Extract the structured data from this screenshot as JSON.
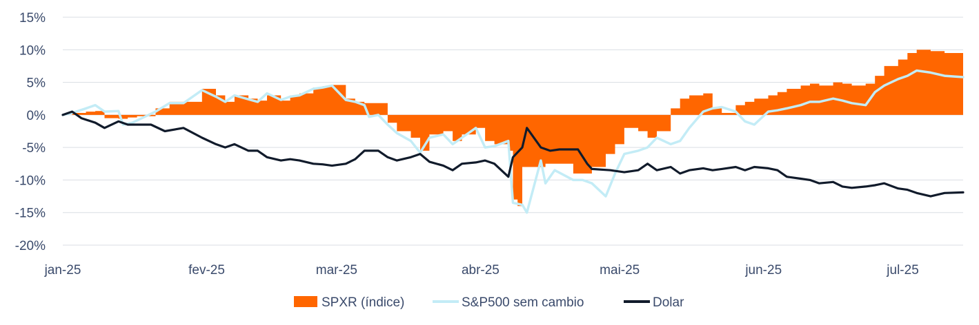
{
  "chart_data": {
    "type": "area",
    "title": "",
    "xlabel": "",
    "ylabel": "",
    "ylim": [
      -20,
      15
    ],
    "y_ticks": [
      15,
      10,
      5,
      0,
      -5,
      -10,
      -15,
      -20
    ],
    "y_tick_labels": [
      "15%",
      "10%",
      "5%",
      "0%",
      "-5%",
      "-10%",
      "-15%",
      "-20%"
    ],
    "x_ticks": [
      {
        "date": "2025-01-01",
        "label": "jan-25"
      },
      {
        "date": "2025-02-01",
        "label": "fev-25"
      },
      {
        "date": "2025-03-01",
        "label": "mar-25"
      },
      {
        "date": "2025-04-01",
        "label": "abr-25"
      },
      {
        "date": "2025-05-01",
        "label": "mai-25"
      },
      {
        "date": "2025-06-01",
        "label": "jun-25"
      },
      {
        "date": "2025-07-01",
        "label": "jul-25"
      }
    ],
    "x_range": [
      "2025-01-01",
      "2025-07-14"
    ],
    "grid": true,
    "legend_position": "bottom",
    "series": [
      {
        "name": "SPXR (índice)",
        "kind": "area",
        "color": "#ff6600",
        "points": [
          [
            "2025-01-01",
            0
          ],
          [
            "2025-01-03",
            0.3
          ],
          [
            "2025-01-06",
            0.5
          ],
          [
            "2025-01-08",
            0.6
          ],
          [
            "2025-01-10",
            -0.5
          ],
          [
            "2025-01-13",
            -0.6
          ],
          [
            "2025-01-15",
            -0.4
          ],
          [
            "2025-01-17",
            -0.2
          ],
          [
            "2025-01-21",
            1.0
          ],
          [
            "2025-01-24",
            2.0
          ],
          [
            "2025-01-27",
            2.0
          ],
          [
            "2025-01-31",
            4.0
          ],
          [
            "2025-02-03",
            3.0
          ],
          [
            "2025-02-05",
            2.0
          ],
          [
            "2025-02-07",
            3.0
          ],
          [
            "2025-02-10",
            2.5
          ],
          [
            "2025-02-12",
            2.2
          ],
          [
            "2025-02-14",
            3.0
          ],
          [
            "2025-02-17",
            2.2
          ],
          [
            "2025-02-19",
            3.0
          ],
          [
            "2025-02-21",
            3.3
          ],
          [
            "2025-02-24",
            4.2
          ],
          [
            "2025-02-26",
            4.4
          ],
          [
            "2025-02-28",
            4.6
          ],
          [
            "2025-03-03",
            2.5
          ],
          [
            "2025-03-05",
            2.0
          ],
          [
            "2025-03-07",
            1.8
          ],
          [
            "2025-03-10",
            1.8
          ],
          [
            "2025-03-12",
            -1.2
          ],
          [
            "2025-03-14",
            -2.5
          ],
          [
            "2025-03-17",
            -3.5
          ],
          [
            "2025-03-19",
            -5.5
          ],
          [
            "2025-03-21",
            -3.0
          ],
          [
            "2025-03-24",
            -2.5
          ],
          [
            "2025-03-26",
            -4.0
          ],
          [
            "2025-03-28",
            -3.0
          ],
          [
            "2025-03-31",
            -2.0
          ],
          [
            "2025-04-02",
            -4.0
          ],
          [
            "2025-04-04",
            -4.5
          ],
          [
            "2025-04-07",
            -5.5
          ],
          [
            "2025-04-08",
            -13.0
          ],
          [
            "2025-04-09",
            -14.0
          ],
          [
            "2025-04-10",
            -8.0
          ],
          [
            "2025-04-11",
            -8.0
          ],
          [
            "2025-04-14",
            -8.0
          ],
          [
            "2025-04-15",
            -7.5
          ],
          [
            "2025-04-17",
            -7.5
          ],
          [
            "2025-04-21",
            -9.0
          ],
          [
            "2025-04-24",
            -9.0
          ],
          [
            "2025-04-25",
            -8.0
          ],
          [
            "2025-04-28",
            -6.0
          ],
          [
            "2025-04-30",
            -4.5
          ],
          [
            "2025-05-02",
            -2.0
          ],
          [
            "2025-05-05",
            -2.5
          ],
          [
            "2025-05-07",
            -3.5
          ],
          [
            "2025-05-09",
            -2.5
          ],
          [
            "2025-05-12",
            1.0
          ],
          [
            "2025-05-14",
            2.5
          ],
          [
            "2025-05-16",
            3.0
          ],
          [
            "2025-05-19",
            3.3
          ],
          [
            "2025-05-21",
            1.0
          ],
          [
            "2025-05-23",
            0.3
          ],
          [
            "2025-05-26",
            1.5
          ],
          [
            "2025-05-28",
            2.0
          ],
          [
            "2025-05-30",
            2.5
          ],
          [
            "2025-06-02",
            3.0
          ],
          [
            "2025-06-04",
            3.5
          ],
          [
            "2025-06-06",
            4.0
          ],
          [
            "2025-06-09",
            4.5
          ],
          [
            "2025-06-11",
            4.8
          ],
          [
            "2025-06-13",
            4.5
          ],
          [
            "2025-06-16",
            5.0
          ],
          [
            "2025-06-18",
            4.8
          ],
          [
            "2025-06-20",
            4.5
          ],
          [
            "2025-06-23",
            4.8
          ],
          [
            "2025-06-25",
            6.0
          ],
          [
            "2025-06-27",
            7.5
          ],
          [
            "2025-06-30",
            8.5
          ],
          [
            "2025-07-02",
            9.5
          ],
          [
            "2025-07-04",
            10.0
          ],
          [
            "2025-07-07",
            9.8
          ],
          [
            "2025-07-10",
            9.5
          ],
          [
            "2025-07-14",
            9.4
          ]
        ]
      },
      {
        "name": "S&P500 sem cambio",
        "kind": "line",
        "color": "#c3ecf6",
        "points": [
          [
            "2025-01-01",
            0
          ],
          [
            "2025-01-03",
            0.3
          ],
          [
            "2025-01-06",
            1.0
          ],
          [
            "2025-01-08",
            1.5
          ],
          [
            "2025-01-10",
            0.5
          ],
          [
            "2025-01-13",
            0.6
          ],
          [
            "2025-01-14",
            -1.5
          ],
          [
            "2025-01-16",
            -1.2
          ],
          [
            "2025-01-21",
            0.5
          ],
          [
            "2025-01-24",
            1.8
          ],
          [
            "2025-01-27",
            1.8
          ],
          [
            "2025-01-31",
            3.8
          ],
          [
            "2025-02-03",
            2.8
          ],
          [
            "2025-02-05",
            2.0
          ],
          [
            "2025-02-07",
            3.0
          ],
          [
            "2025-02-10",
            2.4
          ],
          [
            "2025-02-12",
            2.0
          ],
          [
            "2025-02-14",
            3.3
          ],
          [
            "2025-02-17",
            2.3
          ],
          [
            "2025-02-19",
            2.8
          ],
          [
            "2025-02-21",
            3.0
          ],
          [
            "2025-02-24",
            4.0
          ],
          [
            "2025-02-26",
            4.2
          ],
          [
            "2025-02-28",
            4.5
          ],
          [
            "2025-03-03",
            2.3
          ],
          [
            "2025-03-05",
            2.0
          ],
          [
            "2025-03-07",
            1.5
          ],
          [
            "2025-03-08",
            -0.3
          ],
          [
            "2025-03-10",
            0.0
          ],
          [
            "2025-03-12",
            -1.5
          ],
          [
            "2025-03-14",
            -2.8
          ],
          [
            "2025-03-17",
            -4.0
          ],
          [
            "2025-03-19",
            -5.8
          ],
          [
            "2025-03-21",
            -3.5
          ],
          [
            "2025-03-24",
            -3.0
          ],
          [
            "2025-03-26",
            -4.5
          ],
          [
            "2025-03-28",
            -3.5
          ],
          [
            "2025-03-31",
            -2.0
          ],
          [
            "2025-04-02",
            -5.0
          ],
          [
            "2025-04-04",
            -4.8
          ],
          [
            "2025-04-07",
            -4.0
          ],
          [
            "2025-04-08",
            -13.5
          ],
          [
            "2025-04-10",
            -13.8
          ],
          [
            "2025-04-11",
            -15.0
          ],
          [
            "2025-04-14",
            -7.0
          ],
          [
            "2025-04-15",
            -10.5
          ],
          [
            "2025-04-17",
            -8.5
          ],
          [
            "2025-04-21",
            -10.0
          ],
          [
            "2025-04-23",
            -10.0
          ],
          [
            "2025-04-25",
            -10.5
          ],
          [
            "2025-04-28",
            -12.5
          ],
          [
            "2025-04-30",
            -9.0
          ],
          [
            "2025-05-02",
            -6.0
          ],
          [
            "2025-05-05",
            -5.5
          ],
          [
            "2025-05-07",
            -5.0
          ],
          [
            "2025-05-09",
            -3.5
          ],
          [
            "2025-05-12",
            -4.5
          ],
          [
            "2025-05-14",
            -4.0
          ],
          [
            "2025-05-16",
            -2.0
          ],
          [
            "2025-05-19",
            0.5
          ],
          [
            "2025-05-21",
            1.0
          ],
          [
            "2025-05-23",
            1.2
          ],
          [
            "2025-05-26",
            0.5
          ],
          [
            "2025-05-28",
            -1.0
          ],
          [
            "2025-05-30",
            -1.5
          ],
          [
            "2025-06-02",
            0.5
          ],
          [
            "2025-06-04",
            0.7
          ],
          [
            "2025-06-06",
            1.0
          ],
          [
            "2025-06-09",
            1.5
          ],
          [
            "2025-06-11",
            2.0
          ],
          [
            "2025-06-13",
            2.0
          ],
          [
            "2025-06-16",
            2.5
          ],
          [
            "2025-06-18",
            2.2
          ],
          [
            "2025-06-20",
            1.8
          ],
          [
            "2025-06-23",
            1.5
          ],
          [
            "2025-06-25",
            3.5
          ],
          [
            "2025-06-27",
            4.5
          ],
          [
            "2025-06-30",
            5.5
          ],
          [
            "2025-07-02",
            6.0
          ],
          [
            "2025-07-04",
            6.8
          ],
          [
            "2025-07-07",
            6.5
          ],
          [
            "2025-07-10",
            6.0
          ],
          [
            "2025-07-14",
            5.8
          ]
        ]
      },
      {
        "name": "Dolar",
        "kind": "line",
        "color": "#111b2b",
        "points": [
          [
            "2025-01-01",
            0
          ],
          [
            "2025-01-03",
            0.5
          ],
          [
            "2025-01-05",
            -0.5
          ],
          [
            "2025-01-08",
            -1.2
          ],
          [
            "2025-01-10",
            -2.0
          ],
          [
            "2025-01-13",
            -1.0
          ],
          [
            "2025-01-15",
            -1.5
          ],
          [
            "2025-01-20",
            -1.5
          ],
          [
            "2025-01-23",
            -2.5
          ],
          [
            "2025-01-27",
            -2.0
          ],
          [
            "2025-01-31",
            -3.5
          ],
          [
            "2025-02-03",
            -4.5
          ],
          [
            "2025-02-05",
            -5.0
          ],
          [
            "2025-02-07",
            -4.5
          ],
          [
            "2025-02-10",
            -5.5
          ],
          [
            "2025-02-12",
            -5.5
          ],
          [
            "2025-02-14",
            -6.5
          ],
          [
            "2025-02-17",
            -7.0
          ],
          [
            "2025-02-19",
            -6.8
          ],
          [
            "2025-02-21",
            -7.0
          ],
          [
            "2025-02-24",
            -7.5
          ],
          [
            "2025-02-26",
            -7.6
          ],
          [
            "2025-02-28",
            -7.8
          ],
          [
            "2025-03-03",
            -7.5
          ],
          [
            "2025-03-05",
            -6.8
          ],
          [
            "2025-03-07",
            -5.5
          ],
          [
            "2025-03-10",
            -5.5
          ],
          [
            "2025-03-12",
            -6.5
          ],
          [
            "2025-03-14",
            -7.0
          ],
          [
            "2025-03-17",
            -6.5
          ],
          [
            "2025-03-19",
            -6.0
          ],
          [
            "2025-03-21",
            -7.2
          ],
          [
            "2025-03-24",
            -7.8
          ],
          [
            "2025-03-26",
            -8.5
          ],
          [
            "2025-03-28",
            -7.5
          ],
          [
            "2025-03-31",
            -7.3
          ],
          [
            "2025-04-02",
            -7.0
          ],
          [
            "2025-04-04",
            -7.5
          ],
          [
            "2025-04-07",
            -9.5
          ],
          [
            "2025-04-08",
            -6.5
          ],
          [
            "2025-04-10",
            -5.0
          ],
          [
            "2025-04-11",
            -2.0
          ],
          [
            "2025-04-14",
            -5.0
          ],
          [
            "2025-04-16",
            -5.5
          ],
          [
            "2025-04-18",
            -5.3
          ],
          [
            "2025-04-22",
            -5.3
          ],
          [
            "2025-04-24",
            -7.5
          ],
          [
            "2025-04-25",
            -8.3
          ],
          [
            "2025-04-29",
            -8.5
          ],
          [
            "2025-05-02",
            -8.8
          ],
          [
            "2025-05-05",
            -8.5
          ],
          [
            "2025-05-07",
            -7.5
          ],
          [
            "2025-05-09",
            -8.5
          ],
          [
            "2025-05-12",
            -8.0
          ],
          [
            "2025-05-14",
            -9.0
          ],
          [
            "2025-05-16",
            -8.5
          ],
          [
            "2025-05-19",
            -8.2
          ],
          [
            "2025-05-21",
            -8.5
          ],
          [
            "2025-05-23",
            -8.3
          ],
          [
            "2025-05-26",
            -8.0
          ],
          [
            "2025-05-28",
            -8.5
          ],
          [
            "2025-05-30",
            -8.0
          ],
          [
            "2025-06-02",
            -8.2
          ],
          [
            "2025-06-04",
            -8.5
          ],
          [
            "2025-06-06",
            -9.5
          ],
          [
            "2025-06-09",
            -9.8
          ],
          [
            "2025-06-11",
            -10.0
          ],
          [
            "2025-06-13",
            -10.5
          ],
          [
            "2025-06-16",
            -10.3
          ],
          [
            "2025-06-18",
            -11.0
          ],
          [
            "2025-06-20",
            -11.2
          ],
          [
            "2025-06-23",
            -11.0
          ],
          [
            "2025-06-25",
            -10.8
          ],
          [
            "2025-06-27",
            -10.5
          ],
          [
            "2025-06-30",
            -11.3
          ],
          [
            "2025-07-02",
            -11.5
          ],
          [
            "2025-07-04",
            -12.0
          ],
          [
            "2025-07-07",
            -12.5
          ],
          [
            "2025-07-10",
            -12.0
          ],
          [
            "2025-07-14",
            -11.9
          ]
        ]
      }
    ]
  }
}
